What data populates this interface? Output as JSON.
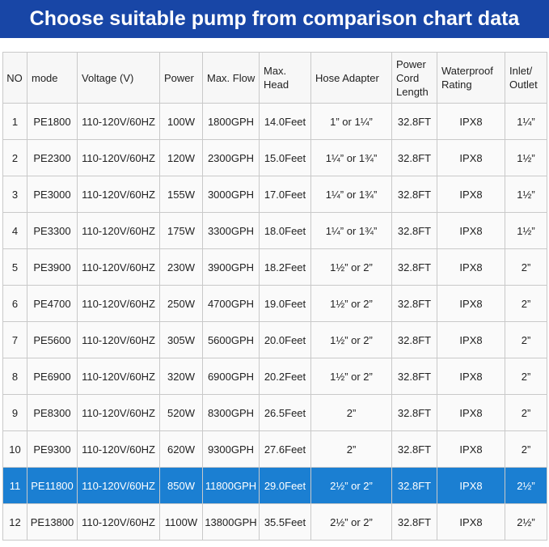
{
  "header": {
    "title": "Choose suitable pump from comparison chart data"
  },
  "table": {
    "columns": [
      "NO",
      "mode",
      "Voltage (V)",
      "Power",
      "Max. Flow",
      "Max. Head",
      "Hose Adapter",
      "Power Cord Length",
      "Waterproof Rating",
      "Inlet/ Outlet"
    ],
    "rows": [
      [
        "1",
        "PE1800",
        "110-120V/60HZ",
        "100W",
        "1800GPH",
        "14.0Feet",
        "1” or 1¼”",
        "32.8FT",
        "IPX8",
        "1¼”"
      ],
      [
        "2",
        "PE2300",
        "110-120V/60HZ",
        "120W",
        "2300GPH",
        "15.0Feet",
        "1¼” or 1¾”",
        "32.8FT",
        "IPX8",
        "1½”"
      ],
      [
        "3",
        "PE3000",
        "110-120V/60HZ",
        "155W",
        "3000GPH",
        "17.0Feet",
        "1¼” or 1¾”",
        "32.8FT",
        "IPX8",
        "1½”"
      ],
      [
        "4",
        "PE3300",
        "110-120V/60HZ",
        "175W",
        "3300GPH",
        "18.0Feet",
        "1¼” or 1¾”",
        "32.8FT",
        "IPX8",
        "1½”"
      ],
      [
        "5",
        "PE3900",
        "110-120V/60HZ",
        "230W",
        "3900GPH",
        "18.2Feet",
        "1½” or 2”",
        "32.8FT",
        "IPX8",
        "2”"
      ],
      [
        "6",
        "PE4700",
        "110-120V/60HZ",
        "250W",
        "4700GPH",
        "19.0Feet",
        "1½” or 2”",
        "32.8FT",
        "IPX8",
        "2”"
      ],
      [
        "7",
        "PE5600",
        "110-120V/60HZ",
        "305W",
        "5600GPH",
        "20.0Feet",
        "1½” or 2”",
        "32.8FT",
        "IPX8",
        "2”"
      ],
      [
        "8",
        "PE6900",
        "110-120V/60HZ",
        "320W",
        "6900GPH",
        "20.2Feet",
        "1½” or 2”",
        "32.8FT",
        "IPX8",
        "2”"
      ],
      [
        "9",
        "PE8300",
        "110-120V/60HZ",
        "520W",
        "8300GPH",
        "26.5Feet",
        "2”",
        "32.8FT",
        "IPX8",
        "2”"
      ],
      [
        "10",
        "PE9300",
        "110-120V/60HZ",
        "620W",
        "9300GPH",
        "27.6Feet",
        "2”",
        "32.8FT",
        "IPX8",
        "2”"
      ],
      [
        "11",
        "PE11800",
        "110-120V/60HZ",
        "850W",
        "11800GPH",
        "29.0Feet",
        "2½” or 2”",
        "32.8FT",
        "IPX8",
        "2½”"
      ],
      [
        "12",
        "PE13800",
        "110-120V/60HZ",
        "1100W",
        "13800GPH",
        "35.5Feet",
        "2½” or 2”",
        "32.8FT",
        "IPX8",
        "2½”"
      ]
    ]
  }
}
